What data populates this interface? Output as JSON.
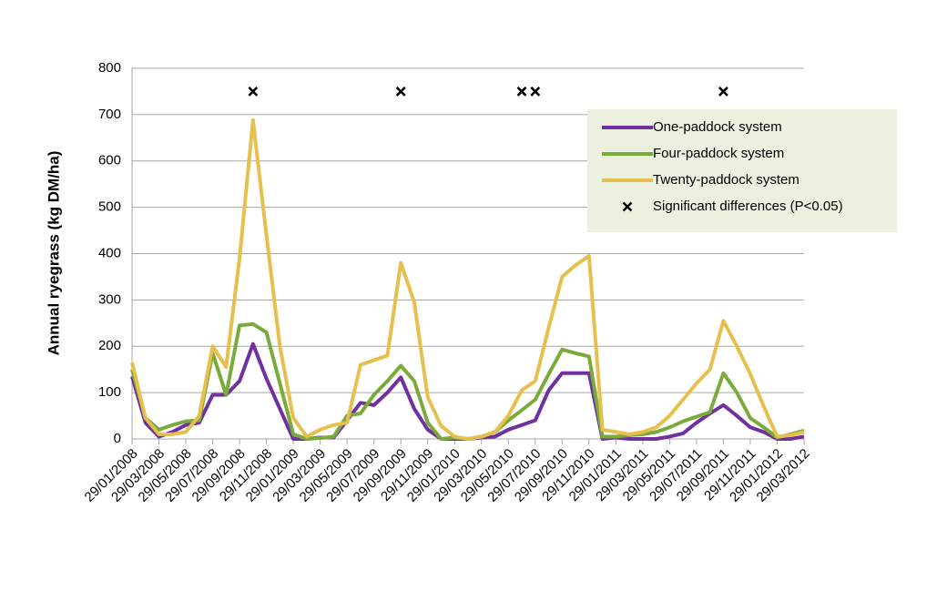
{
  "chart_data": {
    "type": "line",
    "ylabel": "Annual ryegrass (kg DM/ha)",
    "categories": [
      "29/01/2008",
      null,
      "29/03/2008",
      null,
      "29/05/2008",
      null,
      "29/07/2008",
      null,
      "29/09/2008",
      null,
      "29/11/2008",
      null,
      "29/01/2009",
      null,
      "29/03/2009",
      null,
      "29/05/2009",
      null,
      "29/07/2009",
      null,
      "29/09/2009",
      null,
      "29/11/2009",
      null,
      "29/01/2010",
      null,
      "29/03/2010",
      null,
      "29/05/2010",
      null,
      "29/07/2010",
      null,
      "29/09/2010",
      null,
      "29/11/2010",
      null,
      "29/01/2011",
      null,
      "29/03/2011",
      null,
      "29/05/2011",
      null,
      "29/07/2011",
      null,
      "29/09/2011",
      null,
      "29/11/2011",
      null,
      "29/01/2012",
      null,
      "29/03/2012"
    ],
    "series": [
      {
        "name": "One-paddock system",
        "color": "#7030a0",
        "values": [
          135,
          35,
          5,
          15,
          30,
          35,
          95,
          95,
          125,
          205,
          130,
          65,
          0,
          0,
          3,
          3,
          40,
          78,
          73,
          100,
          133,
          65,
          20,
          0,
          0,
          0,
          3,
          5,
          20,
          30,
          40,
          105,
          142,
          142,
          142,
          0,
          3,
          0,
          0,
          0,
          5,
          12,
          35,
          55,
          73,
          50,
          25,
          15,
          0,
          0,
          5
        ]
      },
      {
        "name": "Four-paddock system",
        "color": "#7aab3a",
        "values": [
          150,
          45,
          20,
          30,
          38,
          40,
          185,
          95,
          245,
          248,
          230,
          120,
          10,
          0,
          2,
          5,
          50,
          55,
          95,
          125,
          158,
          125,
          35,
          0,
          3,
          0,
          5,
          15,
          40,
          62,
          85,
          140,
          193,
          185,
          178,
          5,
          5,
          8,
          10,
          15,
          25,
          38,
          48,
          58,
          142,
          100,
          45,
          25,
          3,
          10,
          18
        ]
      },
      {
        "name": "Twenty-paddock system",
        "color": "#e6c04e",
        "values": [
          165,
          45,
          10,
          10,
          15,
          50,
          200,
          155,
          390,
          688,
          440,
          200,
          45,
          5,
          20,
          30,
          35,
          160,
          170,
          180,
          380,
          295,
          90,
          28,
          5,
          0,
          5,
          15,
          50,
          105,
          125,
          240,
          350,
          375,
          395,
          20,
          15,
          10,
          15,
          25,
          50,
          85,
          120,
          150,
          255,
          200,
          140,
          70,
          5,
          8,
          15
        ]
      },
      {
        "name": "Significant differences (P<0.05)",
        "color": "#000000",
        "marker": "x",
        "values": [
          null,
          null,
          null,
          null,
          null,
          null,
          null,
          null,
          null,
          750,
          null,
          null,
          null,
          null,
          null,
          null,
          null,
          null,
          null,
          null,
          750,
          null,
          null,
          null,
          null,
          null,
          null,
          null,
          null,
          750,
          750,
          null,
          null,
          null,
          null,
          null,
          null,
          null,
          null,
          null,
          null,
          null,
          null,
          null,
          750,
          null,
          null,
          null,
          null,
          null,
          null
        ]
      }
    ],
    "ylim": [
      0,
      800
    ],
    "yticks": [
      0,
      100,
      200,
      300,
      400,
      500,
      600,
      700,
      800
    ],
    "grid": true,
    "legend": "upper right"
  }
}
